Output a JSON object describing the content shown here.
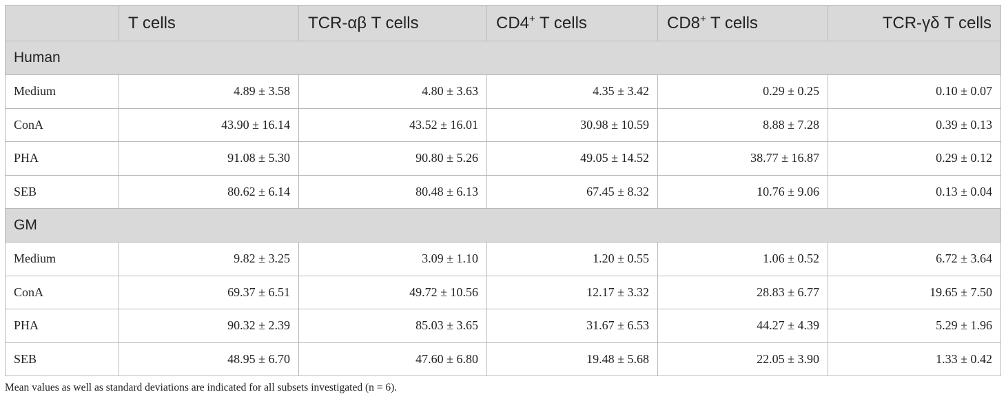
{
  "table": {
    "headers": {
      "c0": "",
      "c1": "T cells",
      "c2_pre": "TCR-",
      "c2_greek": "αβ",
      "c2_post": " T cells",
      "c3_pre": "CD4",
      "c3_sup": "+",
      "c3_post": " T cells",
      "c4_pre": "CD8",
      "c4_sup": "+",
      "c4_post": " T cells",
      "c5_pre": "TCR-",
      "c5_greek": "γδ",
      "c5_post": " T cells"
    },
    "groups": [
      {
        "name": "Human",
        "rows": [
          {
            "label": "Medium",
            "values": [
              "4.89 ± 3.58",
              "4.80 ± 3.63",
              "4.35 ± 3.42",
              "0.29 ± 0.25",
              "0.10 ± 0.07"
            ]
          },
          {
            "label": "ConA",
            "values": [
              "43.90 ± 16.14",
              "43.52 ± 16.01",
              "30.98 ± 10.59",
              "8.88 ± 7.28",
              "0.39 ± 0.13"
            ]
          },
          {
            "label": "PHA",
            "values": [
              "91.08 ± 5.30",
              "90.80 ± 5.26",
              "49.05 ± 14.52",
              "38.77 ± 16.87",
              "0.29 ± 0.12"
            ]
          },
          {
            "label": "SEB",
            "values": [
              "80.62 ± 6.14",
              "80.48 ± 6.13",
              "67.45 ± 8.32",
              "10.76 ± 9.06",
              "0.13 ± 0.04"
            ]
          }
        ]
      },
      {
        "name": "GM",
        "rows": [
          {
            "label": "Medium",
            "values": [
              "9.82 ± 3.25",
              "3.09 ± 1.10",
              "1.20 ± 0.55",
              "1.06 ± 0.52",
              "6.72 ± 3.64"
            ]
          },
          {
            "label": "ConA",
            "values": [
              "69.37 ± 6.51",
              "49.72 ± 10.56",
              "12.17 ± 3.32",
              "28.83 ± 6.77",
              "19.65 ± 7.50"
            ]
          },
          {
            "label": "PHA",
            "values": [
              "90.32 ± 2.39",
              "85.03 ± 3.65",
              "31.67 ± 6.53",
              "44.27 ± 4.39",
              "5.29 ± 1.96"
            ]
          },
          {
            "label": "SEB",
            "values": [
              "48.95 ± 6.70",
              "47.60 ± 6.80",
              "19.48 ± 5.68",
              "22.05 ± 3.90",
              "1.33 ± 0.42"
            ]
          }
        ]
      }
    ]
  },
  "footnote": "Mean values as well as standard deviations are indicated for all subsets investigated (n = 6)."
}
